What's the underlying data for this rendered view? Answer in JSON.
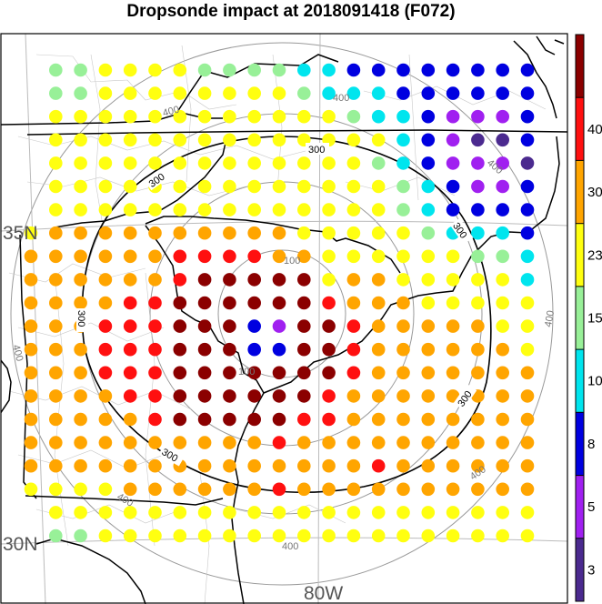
{
  "title": "Dropsonde impact at 2018091418 (F072)",
  "axis_labels": {
    "lat_35": "35N",
    "lat_30": "30N",
    "lon_80": "80W"
  },
  "ring_label": "400",
  "ring_label_inner": "100",
  "contour_label": "300",
  "colorbar": {
    "tick_labels": [
      "3",
      "5",
      "8",
      "10",
      "15",
      "23",
      "30",
      "40"
    ],
    "colors": [
      "#4b2a8f",
      "#a020f0",
      "#0000e0",
      "#00e5ee",
      "#98f098",
      "#ffff10",
      "#ffa500",
      "#ff1010",
      "#8b0000"
    ]
  },
  "legend_level_colors": {
    "purple_dark": "#4b2a8f",
    "purple": "#a020f0",
    "blue": "#0000e0",
    "cyan": "#00e5ee",
    "light_green": "#98f098",
    "yellow": "#ffff10",
    "orange": "#ffa500",
    "red": "#ff1010",
    "dark_red": "#8b0000"
  },
  "grid_points": {
    "columns": 21,
    "rows": 21,
    "codes_legend": "0=none 1=purple-dark 2=purple 3=blue 4=cyan 5=light-green 6=yellow 7=orange 8=red 9=dark-red",
    "rows_data": [
      "055666655554433333333",
      "055666666665444333333",
      "066666666666654432223",
      "066666666666666432113",
      "066666666666665432221",
      "066666666666666543223",
      "066666666666666543333",
      "677777777776666654443",
      "777777888877666666554",
      "777777899999677666664",
      "777788999999877766666",
      "777888999329987777766",
      "777888999339987777776",
      "777888999999987777777",
      "777788999999877777777",
      "777778999998877777777",
      "777777777787777777777",
      "777777777777778777777",
      "666677777787777777777",
      "066666666666666666666",
      "055666666666666666666"
    ]
  }
}
